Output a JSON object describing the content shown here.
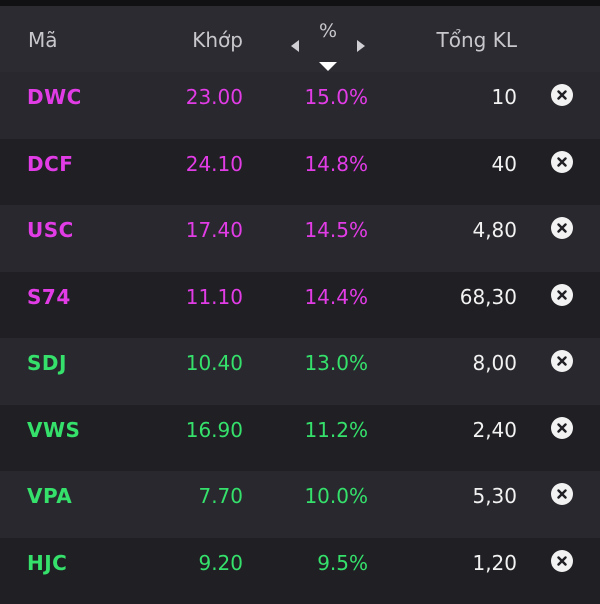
{
  "header": {
    "col_code": "Mã",
    "col_price": "Khớp",
    "col_change": "%",
    "col_volume": "Tổng KL"
  },
  "colors": {
    "ceiling": "#e23ce6",
    "up": "#35e06b",
    "text_white": "#f2f2f2",
    "header_bg": "#2b2b31",
    "row_odd_bg": "#28282e",
    "row_even_bg": "#1f1f24"
  },
  "rows": [
    {
      "code": "DWC",
      "price": "23.00",
      "change": "15.0%",
      "volume": "10",
      "color": "#e23ce6"
    },
    {
      "code": "DCF",
      "price": "24.10",
      "change": "14.8%",
      "volume": "40",
      "color": "#e23ce6"
    },
    {
      "code": "USC",
      "price": "17.40",
      "change": "14.5%",
      "volume": "4,80",
      "color": "#e23ce6"
    },
    {
      "code": "S74",
      "price": "11.10",
      "change": "14.4%",
      "volume": "68,30",
      "color": "#e23ce6"
    },
    {
      "code": "SDJ",
      "price": "10.40",
      "change": "13.0%",
      "volume": "8,00",
      "color": "#35e06b"
    },
    {
      "code": "VWS",
      "price": "16.90",
      "change": "11.2%",
      "volume": "2,40",
      "color": "#35e06b"
    },
    {
      "code": "VPA",
      "price": "7.70",
      "change": "10.0%",
      "volume": "5,30",
      "color": "#35e06b"
    },
    {
      "code": "HJC",
      "price": "9.20",
      "change": "9.5%",
      "volume": "1,20",
      "color": "#35e06b"
    }
  ],
  "icons": {
    "remove": "close-circle-icon",
    "sort_prev": "caret-left-icon",
    "sort_next": "caret-right-icon",
    "sort_dir": "caret-down-icon"
  }
}
